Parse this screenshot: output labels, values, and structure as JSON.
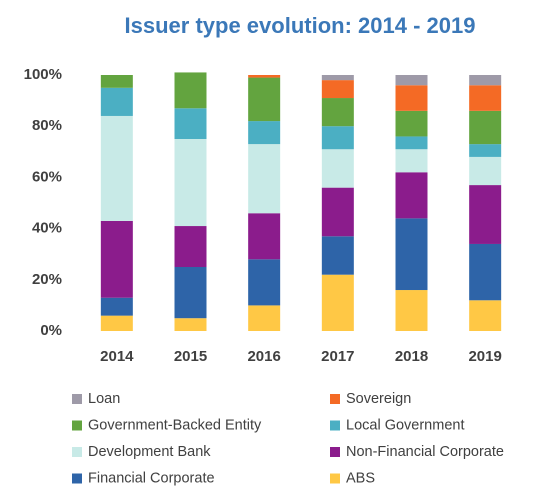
{
  "chart_data": {
    "type": "stacked_bar",
    "title": "Issuer type evolution: 2014 - 2019",
    "categories": [
      "2014",
      "2015",
      "2016",
      "2017",
      "2018",
      "2019"
    ],
    "series": [
      {
        "name": "ABS",
        "color": "#ffc845",
        "values": [
          6,
          5,
          10,
          22,
          16,
          12
        ]
      },
      {
        "name": "Financial Corporate",
        "color": "#2e64a8",
        "values": [
          7,
          20,
          18,
          15,
          28,
          22
        ]
      },
      {
        "name": "Non-Financial Corporate",
        "color": "#8b1c8c",
        "values": [
          30,
          16,
          18,
          19,
          18,
          23
        ]
      },
      {
        "name": "Development Bank",
        "color": "#c8eae7",
        "values": [
          41,
          34,
          27,
          15,
          9,
          11
        ]
      },
      {
        "name": "Local Government",
        "color": "#4bafc3",
        "values": [
          11,
          12,
          9,
          9,
          5,
          5
        ]
      },
      {
        "name": "Government-Backed Entity",
        "color": "#63a43f",
        "values": [
          5,
          14,
          17,
          11,
          10,
          13
        ]
      },
      {
        "name": "Sovereign",
        "color": "#f46a25",
        "values": [
          0,
          0,
          1,
          7,
          10,
          10
        ]
      },
      {
        "name": "Loan",
        "color": "#9e9aa8",
        "values": [
          0,
          0,
          0,
          2,
          4,
          4
        ]
      }
    ],
    "ylim": [
      0,
      100
    ],
    "yticks": [
      {
        "value": 0,
        "label": "0%"
      },
      {
        "value": 20,
        "label": "20%"
      },
      {
        "value": 40,
        "label": "40%"
      },
      {
        "value": 60,
        "label": "60%"
      },
      {
        "value": 80,
        "label": "80%"
      },
      {
        "value": 100,
        "label": "100%"
      }
    ],
    "grid": false
  }
}
